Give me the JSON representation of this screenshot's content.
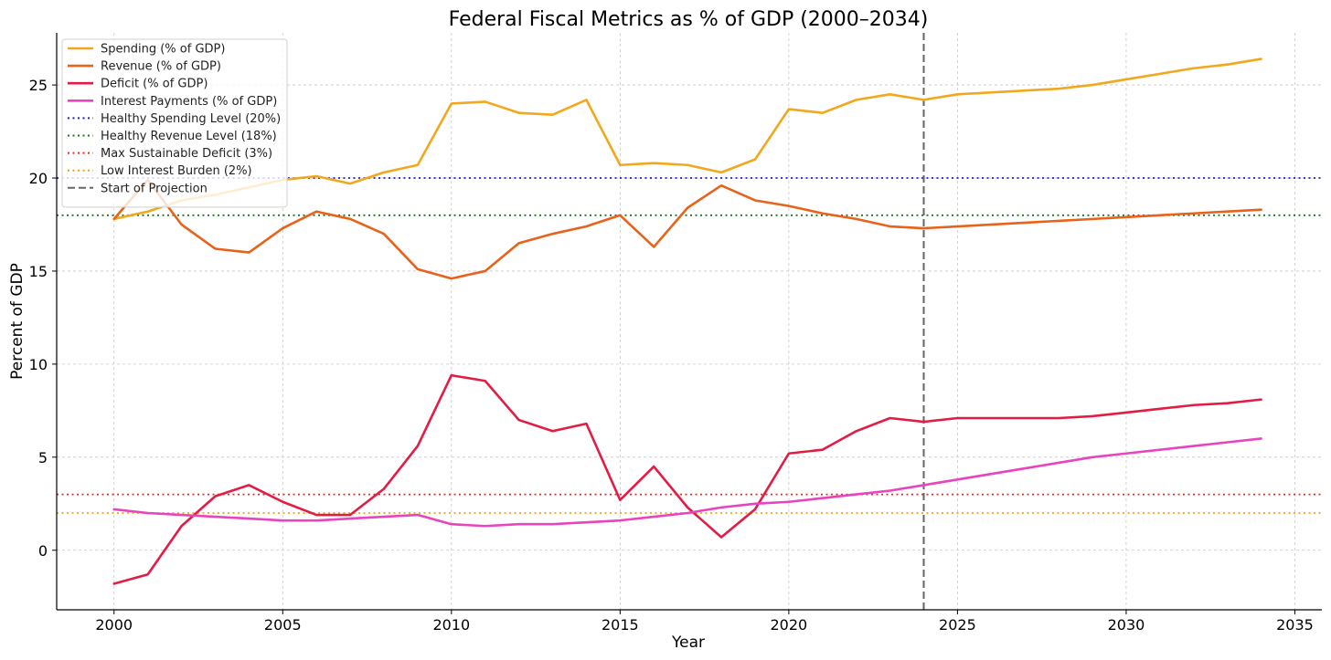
{
  "chart_data": {
    "type": "line",
    "title": "Federal Fiscal Metrics as % of GDP (2000–2034)",
    "xlabel": "Year",
    "ylabel": "Percent of GDP",
    "xlim": [
      1998.3,
      2035.8
    ],
    "ylim": [
      -3.2,
      27.8
    ],
    "xticks": [
      2000,
      2005,
      2010,
      2015,
      2020,
      2025,
      2030,
      2035
    ],
    "yticks": [
      0,
      5,
      10,
      15,
      20,
      25
    ],
    "grid": true,
    "legend_position": "top-left",
    "series": [
      {
        "name": "Spending (% of GDP)",
        "color": "#f2a81d",
        "style": "solid",
        "points": [
          [
            2000,
            17.8
          ],
          [
            2001,
            18.2
          ],
          [
            2002,
            18.8
          ],
          [
            2003,
            19.1
          ],
          [
            2004,
            19.5
          ],
          [
            2005,
            19.9
          ],
          [
            2006,
            20.1
          ],
          [
            2007,
            19.7
          ],
          [
            2008,
            20.3
          ],
          [
            2009,
            20.7
          ],
          [
            2010,
            24.0
          ],
          [
            2011,
            24.1
          ],
          [
            2012,
            23.5
          ],
          [
            2013,
            23.4
          ],
          [
            2014,
            24.2
          ],
          [
            2015,
            20.7
          ],
          [
            2016,
            20.8
          ],
          [
            2017,
            20.7
          ],
          [
            2018,
            20.3
          ],
          [
            2019,
            21.0
          ],
          [
            2020,
            23.7
          ],
          [
            2021,
            23.5
          ],
          [
            2022,
            24.2
          ],
          [
            2023,
            24.5
          ],
          [
            2024,
            24.2
          ],
          [
            2025,
            24.5
          ],
          [
            2028,
            24.8
          ],
          [
            2029,
            25.0
          ],
          [
            2030,
            25.3
          ],
          [
            2031,
            25.6
          ],
          [
            2032,
            25.9
          ],
          [
            2033,
            26.1
          ],
          [
            2034,
            26.4
          ]
        ]
      },
      {
        "name": "Revenue (% of GDP)",
        "color": "#e8621a",
        "style": "solid",
        "points": [
          [
            2000,
            17.8
          ],
          [
            2001,
            19.9
          ],
          [
            2002,
            17.5
          ],
          [
            2003,
            16.2
          ],
          [
            2004,
            16.0
          ],
          [
            2005,
            17.3
          ],
          [
            2006,
            18.2
          ],
          [
            2007,
            17.8
          ],
          [
            2008,
            17.0
          ],
          [
            2009,
            15.1
          ],
          [
            2010,
            14.6
          ],
          [
            2011,
            15.0
          ],
          [
            2012,
            16.5
          ],
          [
            2013,
            17.0
          ],
          [
            2014,
            17.4
          ],
          [
            2015,
            18.0
          ],
          [
            2016,
            16.3
          ],
          [
            2017,
            18.4
          ],
          [
            2018,
            19.6
          ],
          [
            2019,
            18.8
          ],
          [
            2020,
            18.5
          ],
          [
            2021,
            18.1
          ],
          [
            2022,
            17.8
          ],
          [
            2023,
            17.4
          ],
          [
            2024,
            17.3
          ],
          [
            2025,
            17.4
          ],
          [
            2028,
            17.7
          ],
          [
            2029,
            17.8
          ],
          [
            2030,
            17.9
          ],
          [
            2031,
            18.0
          ],
          [
            2032,
            18.1
          ],
          [
            2033,
            18.2
          ],
          [
            2034,
            18.3
          ]
        ]
      },
      {
        "name": "Deficit (% of GDP)",
        "color": "#e31c44",
        "style": "solid",
        "points": [
          [
            2000,
            -1.8
          ],
          [
            2001,
            -1.3
          ],
          [
            2002,
            1.3
          ],
          [
            2003,
            2.9
          ],
          [
            2004,
            3.5
          ],
          [
            2005,
            2.6
          ],
          [
            2006,
            1.9
          ],
          [
            2007,
            1.9
          ],
          [
            2008,
            3.3
          ],
          [
            2009,
            5.6
          ],
          [
            2010,
            9.4
          ],
          [
            2011,
            9.1
          ],
          [
            2012,
            7.0
          ],
          [
            2013,
            6.4
          ],
          [
            2014,
            6.8
          ],
          [
            2015,
            2.7
          ],
          [
            2016,
            4.5
          ],
          [
            2017,
            2.3
          ],
          [
            2018,
            0.7
          ],
          [
            2019,
            2.2
          ],
          [
            2020,
            5.2
          ],
          [
            2021,
            5.4
          ],
          [
            2022,
            6.4
          ],
          [
            2023,
            7.1
          ],
          [
            2024,
            6.9
          ],
          [
            2025,
            7.1
          ],
          [
            2028,
            7.1
          ],
          [
            2029,
            7.2
          ],
          [
            2030,
            7.4
          ],
          [
            2031,
            7.6
          ],
          [
            2032,
            7.8
          ],
          [
            2033,
            7.9
          ],
          [
            2034,
            8.1
          ]
        ]
      },
      {
        "name": "Interest Payments (% of GDP)",
        "color": "#e844be",
        "style": "solid",
        "points": [
          [
            2000,
            2.2
          ],
          [
            2001,
            2.0
          ],
          [
            2002,
            1.9
          ],
          [
            2003,
            1.8
          ],
          [
            2004,
            1.7
          ],
          [
            2005,
            1.6
          ],
          [
            2006,
            1.6
          ],
          [
            2007,
            1.7
          ],
          [
            2008,
            1.8
          ],
          [
            2009,
            1.9
          ],
          [
            2010,
            1.4
          ],
          [
            2011,
            1.3
          ],
          [
            2012,
            1.4
          ],
          [
            2013,
            1.4
          ],
          [
            2014,
            1.5
          ],
          [
            2015,
            1.6
          ],
          [
            2016,
            1.8
          ],
          [
            2017,
            2.0
          ],
          [
            2018,
            2.3
          ],
          [
            2019,
            2.5
          ],
          [
            2020,
            2.6
          ],
          [
            2021,
            2.8
          ],
          [
            2022,
            3.0
          ],
          [
            2023,
            3.2
          ],
          [
            2024,
            3.5
          ],
          [
            2025,
            3.8
          ],
          [
            2026,
            4.1
          ],
          [
            2027,
            4.4
          ],
          [
            2028,
            4.7
          ],
          [
            2029,
            5.0
          ],
          [
            2030,
            5.2
          ],
          [
            2031,
            5.4
          ],
          [
            2032,
            5.6
          ],
          [
            2033,
            5.8
          ],
          [
            2034,
            6.0
          ]
        ]
      }
    ],
    "reference_lines": [
      {
        "name": "Healthy Spending Level (20%)",
        "orientation": "horizontal",
        "value": 20,
        "color": "#1f1fd6",
        "style": "dotted"
      },
      {
        "name": "Healthy Revenue Level (18%)",
        "orientation": "horizontal",
        "value": 18,
        "color": "#1a7a1a",
        "style": "dotted"
      },
      {
        "name": "Max Sustainable Deficit (3%)",
        "orientation": "horizontal",
        "value": 3,
        "color": "#ff2020",
        "style": "dotted"
      },
      {
        "name": "Low Interest Burden (2%)",
        "orientation": "horizontal",
        "value": 2,
        "color": "#f5a10f",
        "style": "dotted"
      },
      {
        "name": "Start of Projection",
        "orientation": "vertical",
        "value": 2024,
        "color": "#666666",
        "style": "dashed"
      }
    ]
  }
}
